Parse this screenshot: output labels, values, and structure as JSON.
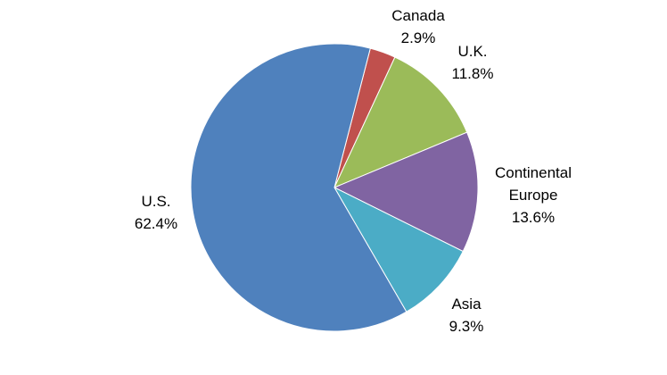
{
  "chart_data": {
    "type": "pie",
    "categories": [
      "Canada",
      "U.K.",
      "Continental Europe",
      "Asia",
      "U.S."
    ],
    "values": [
      2.9,
      11.8,
      13.6,
      9.3,
      62.4
    ],
    "value_labels": [
      "2.9%",
      "11.8%",
      "13.6%",
      "9.3%",
      "62.4%"
    ],
    "colors": [
      "#c0504d",
      "#9bbb59",
      "#8064a2",
      "#4bacc6",
      "#4f81bd"
    ]
  }
}
